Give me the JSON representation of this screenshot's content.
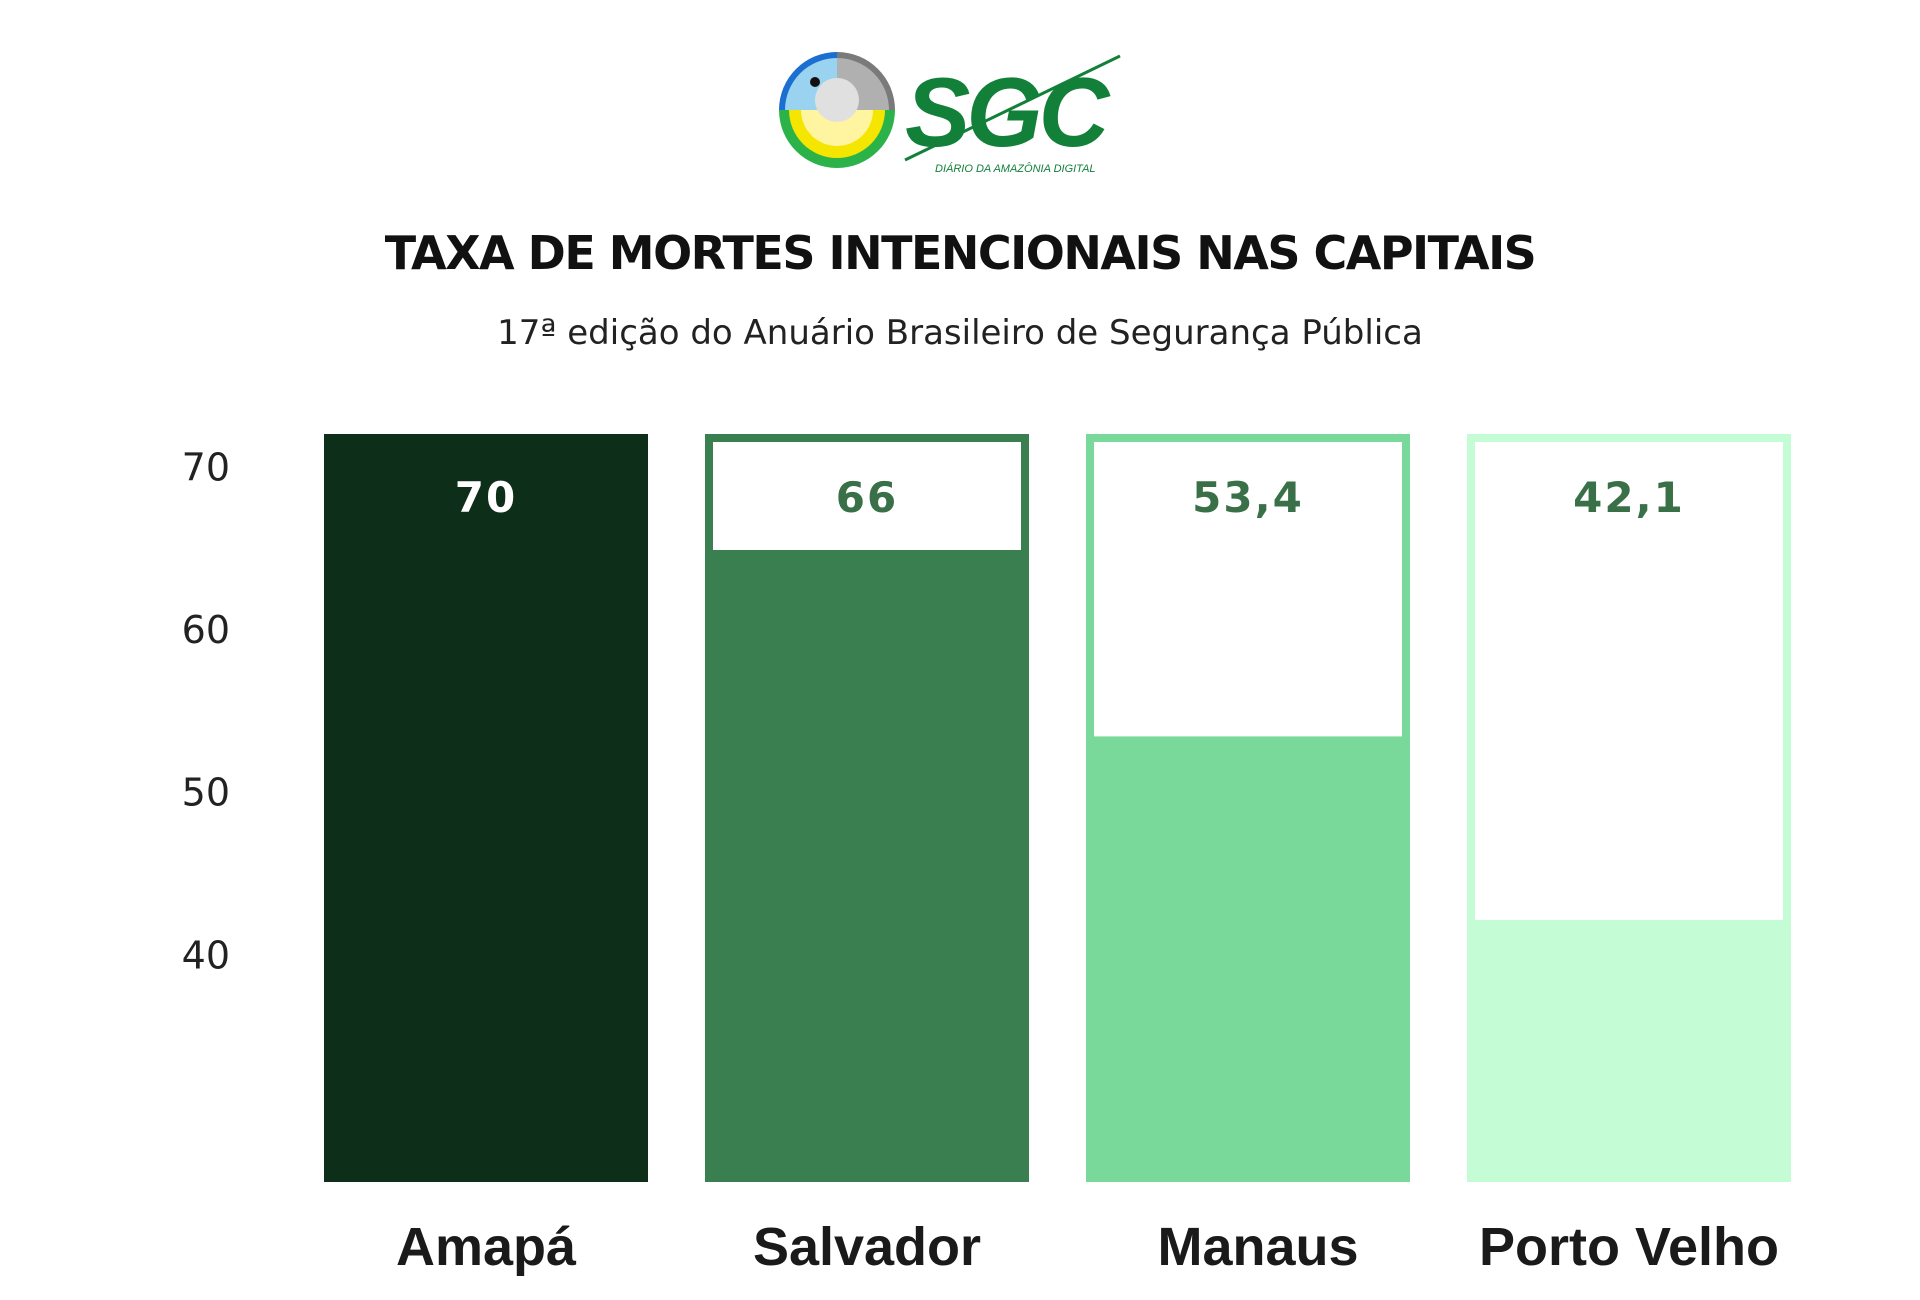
{
  "brand": {
    "name": "SGC",
    "tagline": "DIÁRIO DA AMAZÔNIA DIGITAL",
    "logo_icon": "toucan-circle-icon"
  },
  "chart_data": {
    "type": "bar",
    "title": "TAXA DE MORTES INTENCIONAIS NAS CAPITAIS",
    "subtitle": "17ª edição do Anuário Brasileiro de Segurança Pública",
    "categories": [
      "Amapá",
      "Salvador",
      "Manaus",
      "Porto Velho"
    ],
    "values": [
      70,
      66,
      53.4,
      42.1
    ],
    "value_labels": [
      "70",
      "66",
      "53,4",
      "42,1"
    ],
    "yticks": [
      70,
      60,
      50,
      40
    ],
    "ylim": [
      26,
      72
    ],
    "colors": [
      "#0d2e18",
      "#3a7f50",
      "#79d99b",
      "#c4fcd6"
    ],
    "label_colors": [
      "#ffffff",
      "#3a7048",
      "#3a7048",
      "#3a7048"
    ],
    "grid": false,
    "legend": "none"
  }
}
